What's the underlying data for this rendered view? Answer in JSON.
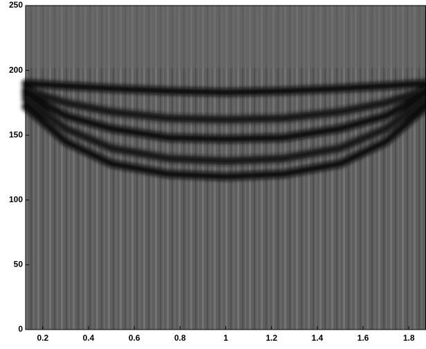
{
  "chart_data": {
    "type": "line",
    "x": [
      0.125,
      0.3,
      0.5,
      0.75,
      1,
      1.25,
      1.5,
      1.7,
      1.875
    ],
    "series": [
      {
        "color": "#0a0a0a",
        "values": [
          190,
          188,
          186,
          184,
          183,
          184,
          186,
          188,
          190
        ]
      },
      {
        "color": "#151515",
        "values": [
          185,
          175,
          168,
          163,
          162,
          163,
          168,
          175,
          185
        ]
      },
      {
        "color": "#0a0a0a",
        "values": [
          182,
          165,
          155,
          148,
          147,
          148,
          155,
          165,
          182
        ]
      },
      {
        "color": "#151515",
        "values": [
          178,
          155,
          140,
          132,
          130,
          132,
          140,
          155,
          178
        ]
      },
      {
        "color": "#0a0a0a",
        "values": [
          172,
          145,
          128,
          120,
          118,
          120,
          128,
          145,
          172
        ]
      }
    ],
    "xlim": [
      0.125,
      1.875
    ],
    "ylim": [
      0,
      250
    ],
    "xticks": [
      0.2,
      0.4,
      0.6,
      0.8,
      1,
      1.2,
      1.4,
      1.6,
      1.8
    ],
    "yticks": [
      0,
      50,
      100,
      150,
      200,
      250
    ]
  }
}
